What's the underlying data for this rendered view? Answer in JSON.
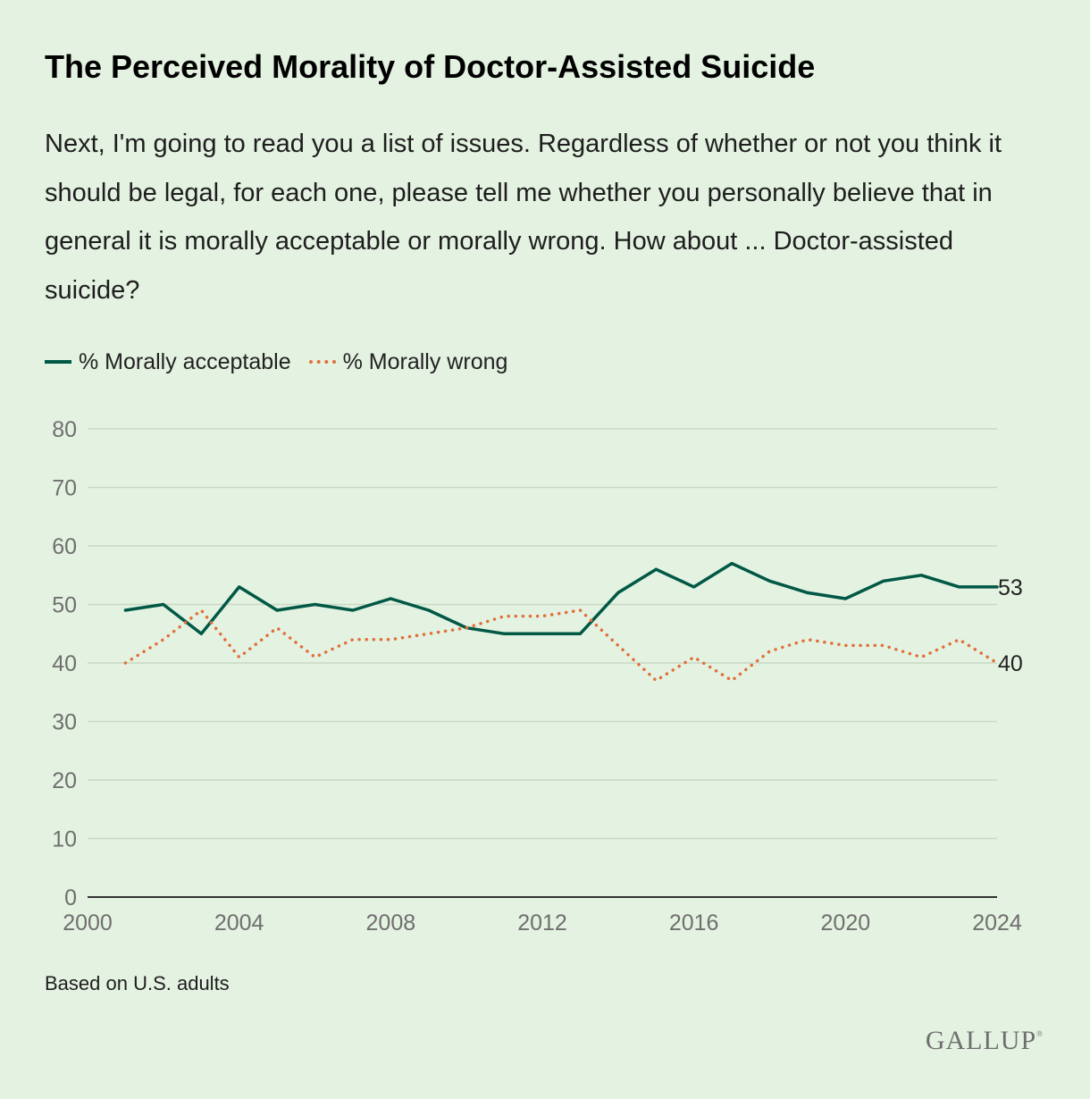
{
  "title": "The Perceived Morality of Doctor-Assisted Suicide",
  "subtitle": "Next, I'm going to read you a list of issues. Regardless of whether or not you think it should be legal, for each one, please tell me whether you personally believe that in general it is morally acceptable or morally wrong. How about ... Doctor-assisted suicide?",
  "note": "Based on U.S. adults",
  "logo": "GALLUP",
  "colors": {
    "background": "#e4f2e1",
    "acceptable": "#005845",
    "wrong": "#e0703b",
    "grid": "#c9d8c6",
    "axis": "#333333"
  },
  "chart_data": {
    "type": "line",
    "title": "",
    "xlabel": "",
    "ylabel": "",
    "xlim": [
      2000,
      2024
    ],
    "ylim": [
      0,
      80
    ],
    "xticks": [
      2000,
      2004,
      2008,
      2012,
      2016,
      2020,
      2024
    ],
    "yticks": [
      0,
      10,
      20,
      30,
      40,
      50,
      60,
      70,
      80
    ],
    "grid": true,
    "legend": "top-left",
    "x": [
      2001,
      2002,
      2003,
      2004,
      2005,
      2006,
      2007,
      2008,
      2009,
      2010,
      2011,
      2012,
      2013,
      2014,
      2015,
      2016,
      2017,
      2018,
      2019,
      2020,
      2021,
      2022,
      2023,
      2024
    ],
    "series": [
      {
        "name": "% Morally acceptable",
        "style": "solid",
        "values": [
          49,
          50,
          45,
          53,
          49,
          50,
          49,
          51,
          49,
          46,
          45,
          45,
          45,
          52,
          56,
          53,
          57,
          54,
          52,
          51,
          54,
          55,
          53,
          53
        ],
        "end_label": "53"
      },
      {
        "name": "% Morally wrong",
        "style": "dotted",
        "values": [
          40,
          44,
          49,
          41,
          46,
          41,
          44,
          44,
          45,
          46,
          48,
          48,
          49,
          43,
          37,
          41,
          37,
          42,
          44,
          43,
          43,
          41,
          44,
          40
        ],
        "end_label": "40"
      }
    ]
  }
}
